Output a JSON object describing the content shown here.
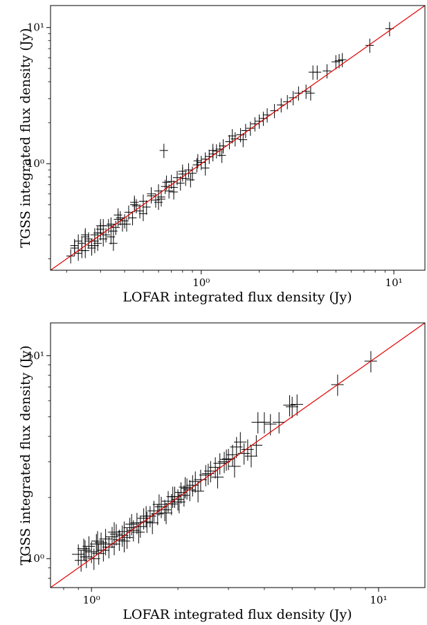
{
  "chart_data": [
    {
      "type": "scatter",
      "title": "",
      "xlabel": "LOFAR integrated flux density (Jy)",
      "ylabel": "TGSS integrated flux density (Jy)",
      "xscale": "log",
      "yscale": "log",
      "xlim": [
        0.165,
        14.5
      ],
      "ylim": [
        0.165,
        14.5
      ],
      "x_ticks": [
        {
          "value": 1,
          "label": "10⁰"
        },
        {
          "value": 10,
          "label": "10¹"
        }
      ],
      "y_ticks": [
        {
          "value": 1,
          "label": "10⁰"
        },
        {
          "value": 10,
          "label": "10¹"
        }
      ],
      "reference_line": {
        "type": "y=x",
        "color": "#e00000"
      },
      "marker": "error bars (+)",
      "series": [
        {
          "x": [
            0.21,
            0.22,
            0.23,
            0.24,
            0.25,
            0.26,
            0.27,
            0.28,
            0.29,
            0.3,
            0.22,
            0.24,
            0.26,
            0.28,
            0.3,
            0.32,
            0.34,
            0.36,
            0.38,
            0.4,
            0.23,
            0.25,
            0.27,
            0.29,
            0.31,
            0.33,
            0.35,
            0.37,
            0.39,
            0.42,
            0.44,
            0.46,
            0.48,
            0.5,
            0.52,
            0.55,
            0.58,
            0.6,
            0.62,
            0.65,
            0.68,
            0.7,
            0.72,
            0.75,
            0.78,
            0.8,
            0.83,
            0.86,
            0.9,
            0.95,
            1.0,
            1.05,
            1.1,
            1.15,
            1.2,
            1.25,
            1.3,
            1.4,
            1.5,
            1.6,
            1.7,
            1.8,
            1.9,
            2.0,
            2.1,
            2.2,
            2.4,
            2.6,
            2.8,
            3.0,
            3.2,
            3.5,
            3.7,
            3.8,
            4.0,
            4.5,
            5.0,
            5.2,
            5.4,
            7.5,
            9.5,
            0.25,
            0.28,
            0.31,
            0.34,
            0.37,
            0.41,
            0.45,
            0.5,
            0.55,
            0.6,
            0.66,
            0.72,
            0.8,
            0.88,
            0.96,
            1.05,
            1.15,
            1.28,
            1.45,
            1.65,
            0.64,
            0.3,
            0.35,
            0.45,
            0.62
          ],
          "y": [
            0.21,
            0.24,
            0.22,
            0.26,
            0.23,
            0.27,
            0.25,
            0.3,
            0.26,
            0.31,
            0.25,
            0.23,
            0.28,
            0.27,
            0.33,
            0.3,
            0.36,
            0.34,
            0.4,
            0.38,
            0.27,
            0.29,
            0.24,
            0.31,
            0.28,
            0.35,
            0.32,
            0.39,
            0.36,
            0.44,
            0.4,
            0.49,
            0.45,
            0.53,
            0.48,
            0.58,
            0.54,
            0.63,
            0.57,
            0.68,
            0.63,
            0.74,
            0.67,
            0.79,
            0.72,
            0.84,
            0.78,
            0.9,
            0.85,
            0.98,
            1.02,
            1.08,
            1.13,
            1.18,
            1.24,
            1.28,
            1.35,
            1.45,
            1.52,
            1.63,
            1.75,
            1.82,
            1.96,
            2.05,
            2.15,
            2.28,
            2.45,
            2.7,
            2.85,
            3.05,
            3.3,
            3.4,
            3.3,
            4.7,
            4.7,
            4.8,
            5.6,
            5.7,
            5.8,
            7.4,
            9.8,
            0.3,
            0.25,
            0.35,
            0.29,
            0.42,
            0.36,
            0.5,
            0.43,
            0.6,
            0.52,
            0.73,
            0.62,
            0.88,
            0.76,
            1.05,
            0.93,
            1.25,
            1.15,
            1.6,
            1.5,
            1.25,
            0.35,
            0.26,
            0.52,
            0.55
          ]
        }
      ]
    },
    {
      "type": "scatter",
      "title": "",
      "xlabel": "LOFAR integrated flux density (Jy)",
      "ylabel": "TGSS integrated flux density (Jy)",
      "xscale": "log",
      "yscale": "log",
      "xlim": [
        0.72,
        14.5
      ],
      "ylim": [
        0.72,
        14.5
      ],
      "x_ticks": [
        {
          "value": 1,
          "label": "10⁰"
        },
        {
          "value": 10,
          "label": "10¹"
        }
      ],
      "y_ticks": [
        {
          "value": 1,
          "label": "10⁰"
        },
        {
          "value": 10,
          "label": "10¹"
        }
      ],
      "reference_line": {
        "type": "y=x",
        "color": "#e00000"
      },
      "marker": "error bars (+)",
      "series": [
        {
          "x": [
            0.9,
            0.92,
            0.94,
            0.96,
            0.98,
            1.0,
            1.02,
            1.04,
            1.06,
            1.08,
            1.1,
            1.12,
            1.15,
            1.18,
            1.2,
            1.22,
            1.25,
            1.28,
            1.3,
            1.33,
            1.36,
            1.4,
            1.44,
            1.48,
            1.52,
            1.56,
            1.6,
            1.65,
            1.7,
            1.75,
            1.8,
            1.85,
            1.9,
            1.95,
            2.0,
            2.05,
            2.1,
            2.15,
            2.2,
            2.25,
            2.3,
            2.4,
            2.5,
            2.6,
            2.7,
            2.8,
            2.9,
            3.0,
            3.1,
            3.2,
            3.4,
            3.6,
            3.8,
            4.0,
            4.2,
            4.5,
            4.9,
            5.0,
            5.2,
            7.2,
            9.4,
            0.95,
            1.05,
            1.12,
            1.2,
            1.3,
            1.38,
            1.46,
            1.55,
            1.63,
            1.72,
            1.82,
            1.92,
            2.02,
            2.12,
            2.35,
            2.55,
            2.75,
            2.95,
            3.15,
            3.3,
            3.5,
            3.75
          ],
          "y": [
            1.05,
            0.98,
            1.12,
            1.02,
            1.15,
            1.08,
            1.0,
            1.18,
            1.06,
            1.2,
            1.1,
            1.25,
            1.14,
            1.28,
            1.18,
            1.32,
            1.24,
            1.3,
            1.36,
            1.27,
            1.42,
            1.38,
            1.5,
            1.44,
            1.58,
            1.52,
            1.62,
            1.72,
            1.66,
            1.8,
            1.74,
            1.92,
            1.86,
            2.02,
            1.96,
            2.12,
            2.05,
            2.22,
            2.18,
            2.3,
            2.4,
            2.45,
            2.58,
            2.7,
            2.82,
            2.95,
            3.0,
            3.1,
            3.25,
            3.55,
            3.3,
            3.2,
            4.7,
            4.7,
            4.6,
            4.7,
            5.7,
            5.6,
            5.75,
            7.2,
            9.4,
            1.1,
            1.22,
            1.18,
            1.35,
            1.22,
            1.48,
            1.35,
            1.62,
            1.5,
            1.85,
            1.68,
            2.02,
            1.9,
            2.25,
            2.15,
            2.62,
            2.52,
            3.08,
            2.85,
            3.75,
            3.45,
            3.62
          ]
        }
      ]
    }
  ]
}
